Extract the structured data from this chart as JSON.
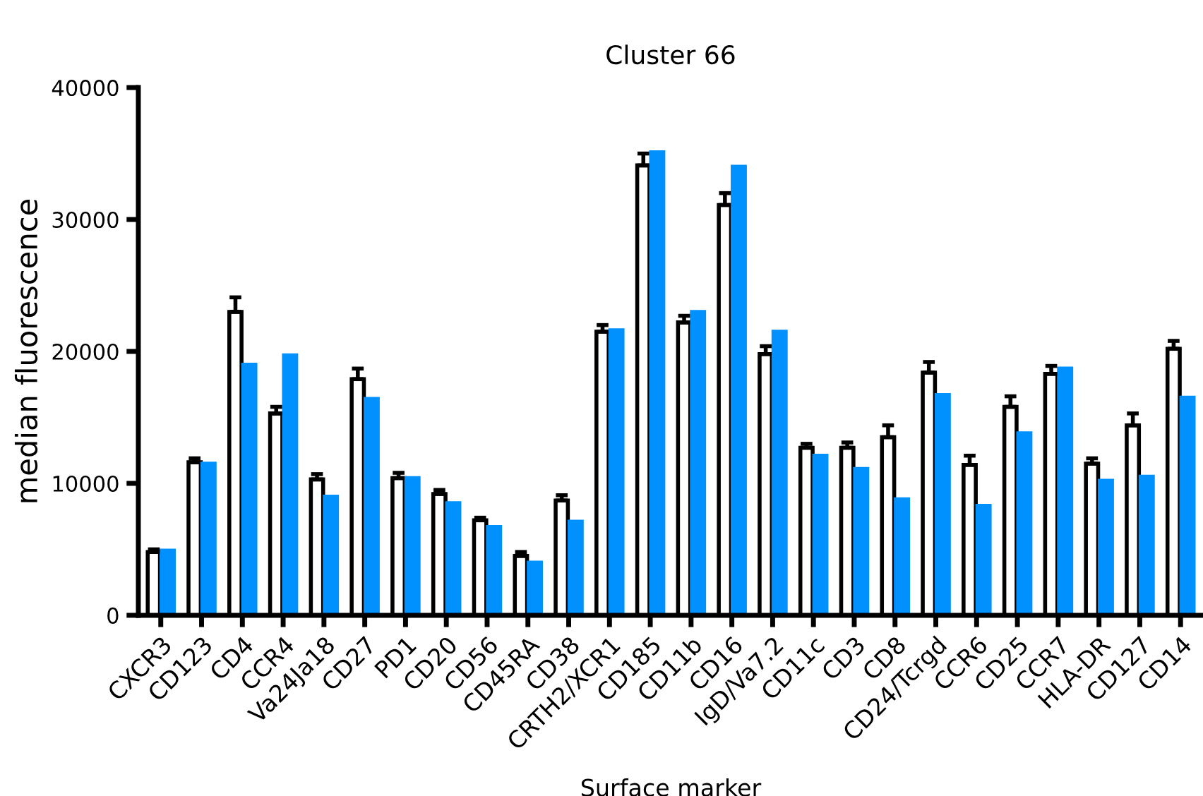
{
  "chart_data": {
    "type": "bar",
    "title": "Cluster 66",
    "xlabel": "Surface marker",
    "ylabel": "median fluorescence",
    "categories": [
      "CXCR3",
      "CD123",
      "CD4",
      "CCR4",
      "Va24Ja18",
      "CD27",
      "PD1",
      "CD20",
      "CD56",
      "CD45RA",
      "CD38",
      "CRTH2/XCR1",
      "CD185",
      "CD11b",
      "CD16",
      "IgD/Va7.2",
      "CD11c",
      "CD3",
      "CD8",
      "CD24/Tcrgd",
      "CCR6",
      "CD25",
      "CCR7",
      "HLA-DR",
      "CD127",
      "CD14"
    ],
    "series": [
      {
        "color": "#ffffff",
        "values": [
          4800,
          11600,
          23000,
          15300,
          10300,
          17900,
          10400,
          9200,
          7200,
          4500,
          8700,
          21500,
          34100,
          22200,
          31100,
          19800,
          12700,
          12700,
          13500,
          18400,
          11400,
          15800,
          18300,
          11500,
          14400,
          20200
        ],
        "errors": [
          [
            4800,
            5000
          ],
          [
            11600,
            11900
          ],
          [
            23000,
            24100
          ],
          [
            15300,
            15800
          ],
          [
            10300,
            10700
          ],
          [
            17900,
            18700
          ],
          [
            10400,
            10800
          ],
          [
            9200,
            9500
          ],
          [
            7200,
            7400
          ],
          [
            4500,
            4800
          ],
          [
            8700,
            9100
          ],
          [
            21500,
            22000
          ],
          [
            34100,
            35000
          ],
          [
            22200,
            22700
          ],
          [
            31100,
            32000
          ],
          [
            19800,
            20400
          ],
          [
            12700,
            13000
          ],
          [
            12700,
            13100
          ],
          [
            13500,
            14400
          ],
          [
            18400,
            19200
          ],
          [
            11400,
            12100
          ],
          [
            15800,
            16600
          ],
          [
            18300,
            18900
          ],
          [
            11500,
            11900
          ],
          [
            14400,
            15300
          ],
          [
            20200,
            20800
          ]
        ]
      },
      {
        "color": "#0091ff",
        "values": [
          4900,
          11500,
          19000,
          19700,
          9000,
          16400,
          10400,
          8500,
          6700,
          4000,
          7100,
          21600,
          35100,
          23000,
          34000,
          21500,
          12100,
          11100,
          8800,
          16700,
          8300,
          13800,
          18700,
          10200,
          10500,
          16500
        ]
      }
    ],
    "ylim": [
      0,
      40000
    ],
    "yticks": [
      0,
      10000,
      20000,
      30000,
      40000
    ],
    "grid": false,
    "legend": false
  }
}
